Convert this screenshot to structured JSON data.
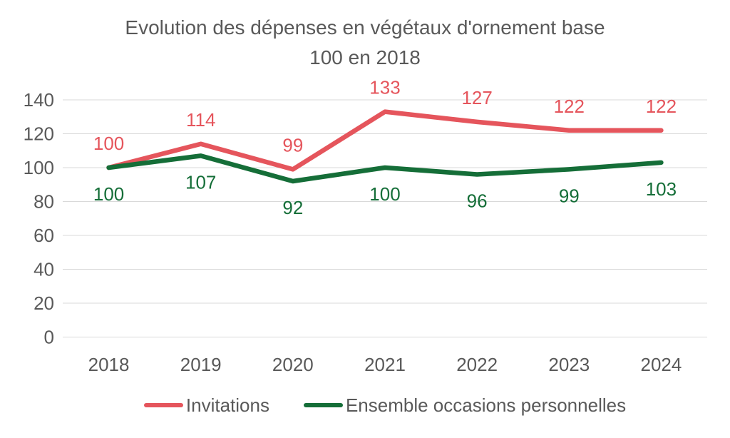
{
  "title": {
    "line1": "Evolution des dépenses en végétaux d'ornement base",
    "line2": "100 en 2018"
  },
  "chart_data": {
    "type": "line",
    "title": "Evolution des dépenses en végétaux d'ornement base 100 en 2018",
    "categories": [
      "2018",
      "2019",
      "2020",
      "2021",
      "2022",
      "2023",
      "2024"
    ],
    "series": [
      {
        "name": "Invitations",
        "values": [
          100,
          114,
          99,
          133,
          127,
          122,
          122
        ],
        "color": "#E5555C",
        "label_position": "above"
      },
      {
        "name": "Ensemble occasions personnelles",
        "values": [
          100,
          107,
          92,
          100,
          96,
          99,
          103
        ],
        "color": "#156E38",
        "label_position": "below"
      }
    ],
    "xlabel": "",
    "ylabel": "",
    "ylim": [
      0,
      140
    ],
    "yticks": [
      0,
      20,
      40,
      60,
      80,
      100,
      120,
      140
    ],
    "grid": true,
    "data_labels": true,
    "legend_position": "bottom"
  },
  "colors": {
    "title_text": "#595959",
    "axis_text": "#595959",
    "gridline": "#D9D9D9",
    "background": "#FFFFFF"
  }
}
